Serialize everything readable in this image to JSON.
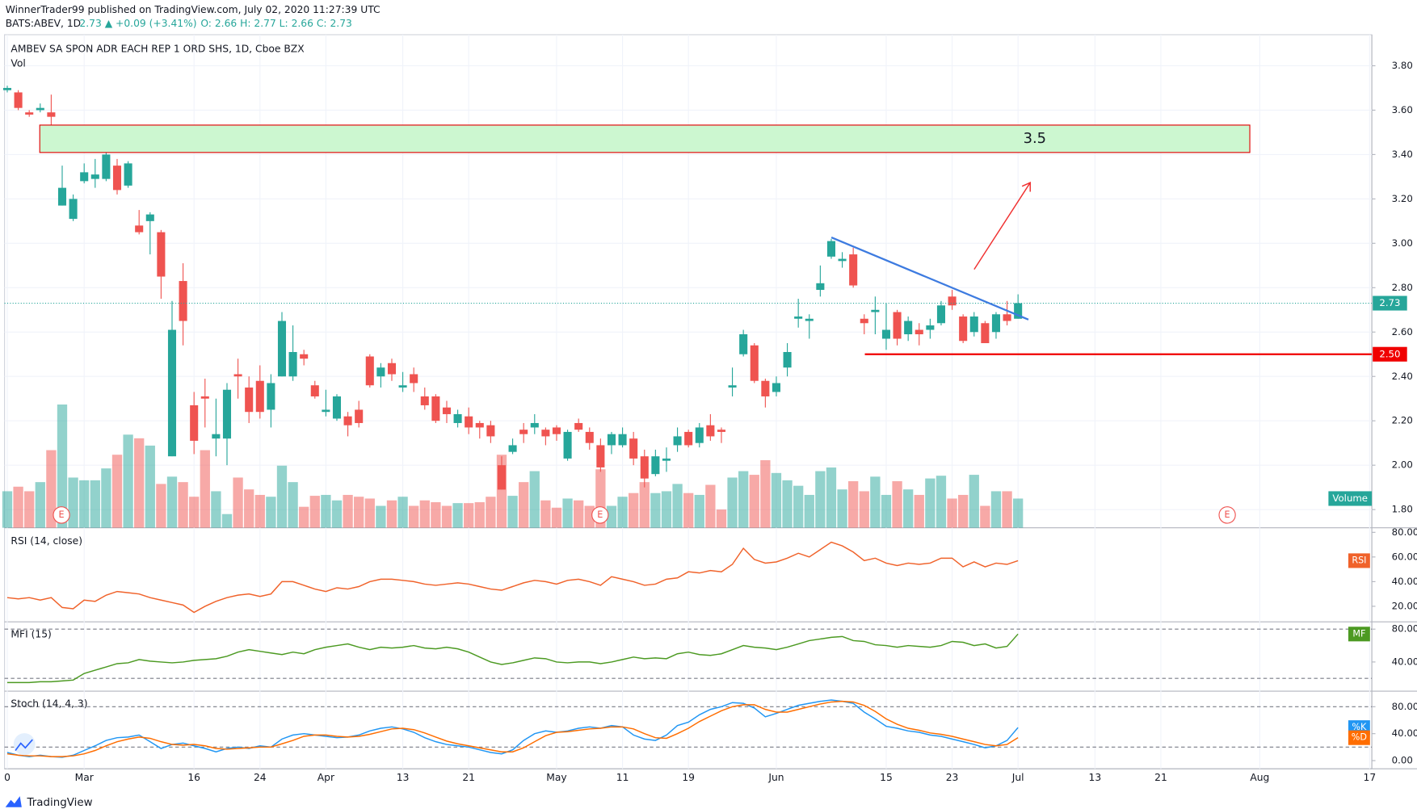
{
  "header": {
    "publisher": "WinnerTrader99 published on TradingView.com, July 02, 2020 11:27:39 UTC",
    "symbol": "BATS:ABEV, 1D",
    "quote": "2.73 ▲ +0.09 (+3.41%)",
    "ohlc": "O: 2.66 H: 2.77 L: 2.66 C: 2.73"
  },
  "footer": "TradingView",
  "chart_data": [
    {
      "type": "candlestick",
      "title": "AMBEV SA SPON ADR EACH REP 1 ORD SHS, 1D, Cboe BZX",
      "volume_label": "Vol",
      "annotation": "3.5",
      "earnings_markers": [
        "E",
        "E",
        "E"
      ],
      "xlim": [
        -0.25,
        124.2
      ],
      "xticks": [
        {
          "value": 0,
          "label": "0"
        },
        {
          "value": 7,
          "label": "Mar"
        },
        {
          "value": 17,
          "label": "16"
        },
        {
          "value": 23,
          "label": "24"
        },
        {
          "value": 29,
          "label": "Apr"
        },
        {
          "value": 36,
          "label": "13"
        },
        {
          "value": 42,
          "label": "21"
        },
        {
          "value": 50,
          "label": "May"
        },
        {
          "value": 56,
          "label": "11"
        },
        {
          "value": 62,
          "label": "19"
        },
        {
          "value": 70,
          "label": "Jun"
        },
        {
          "value": 80,
          "label": "15"
        },
        {
          "value": 86,
          "label": "23"
        },
        {
          "value": 92,
          "label": "Jul"
        },
        {
          "value": 99,
          "label": "13"
        },
        {
          "value": 105,
          "label": "21"
        },
        {
          "value": 114,
          "label": "Aug"
        },
        {
          "value": 124,
          "label": "17"
        }
      ],
      "ylim": [
        1.718,
        3.94
      ],
      "yticks": [
        {
          "value": 3.8,
          "label": "3.80"
        },
        {
          "value": 3.6,
          "label": "3.60"
        },
        {
          "value": 3.4,
          "label": "3.40"
        },
        {
          "value": 3.2,
          "label": "3.20"
        },
        {
          "value": 3.0,
          "label": "3.00"
        },
        {
          "value": 2.8,
          "label": "2.80"
        },
        {
          "value": 2.6,
          "label": "2.60"
        },
        {
          "value": 2.4,
          "label": "2.40"
        },
        {
          "value": 2.2,
          "label": "2.20"
        },
        {
          "value": 2.0,
          "label": "2.00"
        },
        {
          "value": 1.8,
          "label": "1.80"
        }
      ],
      "grid": true,
      "up_color": "#26a69a",
      "down_color": "#ef5350",
      "last_price": {
        "value": 2.73,
        "label": "2.73"
      },
      "support": {
        "value": 2.5,
        "label": "2.50",
        "color": "#f00000"
      },
      "open": [
        3.69,
        3.68,
        3.59,
        3.6,
        3.59,
        3.17,
        3.11,
        3.28,
        3.29,
        3.29,
        3.35,
        3.26,
        3.08,
        3.1,
        3.05,
        2.04,
        2.83,
        2.27,
        2.31,
        2.12,
        2.12,
        2.41,
        2.35,
        2.38,
        2.25,
        2.4,
        2.4,
        2.5,
        2.36,
        2.24,
        2.21,
        2.22,
        2.25,
        2.49,
        2.4,
        2.46,
        2.35,
        2.41,
        2.31,
        2.31,
        2.26,
        2.19,
        2.22,
        2.19,
        2.18,
        2.0,
        2.06,
        2.16,
        2.17,
        2.16,
        2.17,
        2.03,
        2.19,
        2.15,
        2.09,
        2.09,
        2.09,
        2.12,
        2.04,
        1.96,
        2.02,
        2.09,
        2.15,
        2.1,
        2.18,
        2.16,
        2.35,
        2.5,
        2.54,
        2.38,
        2.33,
        2.44,
        2.66,
        2.65,
        2.79,
        2.94,
        2.92,
        2.95,
        2.66,
        2.69,
        2.57,
        2.69,
        2.59,
        2.61,
        2.61,
        2.64,
        2.76,
        2.67,
        2.6,
        2.64,
        2.6,
        2.68,
        2.66
      ],
      "high": [
        3.71,
        3.69,
        3.6,
        3.63,
        3.67,
        3.35,
        3.22,
        3.36,
        3.38,
        3.41,
        3.38,
        3.37,
        3.15,
        3.14,
        3.06,
        2.74,
        2.91,
        2.33,
        2.39,
        2.3,
        2.37,
        2.48,
        2.4,
        2.45,
        2.41,
        2.69,
        2.63,
        2.52,
        2.38,
        2.34,
        2.32,
        2.24,
        2.29,
        2.5,
        2.46,
        2.48,
        2.42,
        2.44,
        2.35,
        2.32,
        2.29,
        2.25,
        2.26,
        2.2,
        2.2,
        2.04,
        2.12,
        2.19,
        2.23,
        2.17,
        2.18,
        2.16,
        2.21,
        2.17,
        2.12,
        2.15,
        2.17,
        2.15,
        2.07,
        2.07,
        2.08,
        2.17,
        2.16,
        2.19,
        2.23,
        2.17,
        2.44,
        2.61,
        2.55,
        2.39,
        2.4,
        2.55,
        2.75,
        2.68,
        2.9,
        3.02,
        2.96,
        2.98,
        2.68,
        2.76,
        2.73,
        2.7,
        2.67,
        2.64,
        2.66,
        2.74,
        2.79,
        2.68,
        2.69,
        2.65,
        2.69,
        2.74,
        2.77
      ],
      "low": [
        3.68,
        3.6,
        3.57,
        3.59,
        3.5,
        3.17,
        3.1,
        3.27,
        3.25,
        3.28,
        3.22,
        3.25,
        3.04,
        2.95,
        2.75,
        2.04,
        2.54,
        2.05,
        2.17,
        2.04,
        2.0,
        2.3,
        2.19,
        2.21,
        2.17,
        2.4,
        2.38,
        2.45,
        2.3,
        2.22,
        2.2,
        2.13,
        2.17,
        2.35,
        2.35,
        2.38,
        2.33,
        2.33,
        2.25,
        2.19,
        2.19,
        2.17,
        2.14,
        2.12,
        2.1,
        1.89,
        2.05,
        2.1,
        2.14,
        2.09,
        2.11,
        2.02,
        2.15,
        2.07,
        1.97,
        2.05,
        2.08,
        2.0,
        1.9,
        1.95,
        1.97,
        2.06,
        2.08,
        2.08,
        2.11,
        2.1,
        2.31,
        2.49,
        2.37,
        2.26,
        2.31,
        2.4,
        2.62,
        2.57,
        2.76,
        2.93,
        2.89,
        2.8,
        2.59,
        2.59,
        2.52,
        2.54,
        2.56,
        2.54,
        2.57,
        2.63,
        2.7,
        2.55,
        2.58,
        2.55,
        2.57,
        2.63,
        2.66
      ],
      "close": [
        3.7,
        3.61,
        3.58,
        3.61,
        3.57,
        3.25,
        3.2,
        3.32,
        3.31,
        3.4,
        3.24,
        3.36,
        3.05,
        3.13,
        2.85,
        2.61,
        2.65,
        2.11,
        2.3,
        2.14,
        2.34,
        2.4,
        2.24,
        2.24,
        2.37,
        2.65,
        2.51,
        2.48,
        2.31,
        2.25,
        2.31,
        2.18,
        2.19,
        2.36,
        2.44,
        2.41,
        2.36,
        2.37,
        2.27,
        2.2,
        2.23,
        2.23,
        2.17,
        2.17,
        2.13,
        1.89,
        2.09,
        2.14,
        2.19,
        2.13,
        2.14,
        2.15,
        2.16,
        2.1,
        1.99,
        2.14,
        2.14,
        2.03,
        1.94,
        2.04,
        2.03,
        2.13,
        2.09,
        2.17,
        2.13,
        2.15,
        2.36,
        2.59,
        2.38,
        2.31,
        2.37,
        2.51,
        2.67,
        2.66,
        2.82,
        3.01,
        2.93,
        2.81,
        2.64,
        2.7,
        2.61,
        2.57,
        2.65,
        2.59,
        2.63,
        2.72,
        2.72,
        2.56,
        2.67,
        2.55,
        2.68,
        2.65,
        2.73
      ],
      "volume": {
        "name": "Volume",
        "values": [
          40,
          45,
          40,
          50,
          85,
          135,
          55,
          52,
          52,
          65,
          80,
          102,
          98,
          90,
          48,
          56,
          50,
          34,
          85,
          40,
          15,
          55,
          42,
          36,
          34,
          68,
          50,
          23,
          35,
          36,
          30,
          36,
          34,
          32,
          24,
          30,
          34,
          24,
          30,
          28,
          24,
          27,
          27,
          28,
          34,
          80,
          35,
          50,
          62,
          30,
          22,
          32,
          30,
          24,
          64,
          24,
          34,
          38,
          50,
          38,
          40,
          48,
          38,
          36,
          47,
          20,
          55,
          62,
          58,
          74,
          60,
          52,
          46,
          36,
          62,
          66,
          42,
          51,
          40,
          56,
          36,
          51,
          42,
          36,
          54,
          57,
          32,
          36,
          58,
          24,
          40,
          40,
          32
        ]
      }
    },
    {
      "type": "line",
      "title": "RSI (14, close)",
      "ylim": [
        7.4,
        83.7
      ],
      "yticks": [
        {
          "value": 80,
          "label": "80.00"
        },
        {
          "value": 60,
          "label": "60.00"
        },
        {
          "value": 40,
          "label": "40.00"
        },
        {
          "value": 20,
          "label": "20.00"
        }
      ],
      "series": [
        {
          "name": "RSI",
          "color": "#f0622a",
          "values": [
            27,
            26,
            27,
            25,
            27,
            19,
            18,
            25,
            24,
            29,
            32,
            31,
            30,
            27,
            25,
            23,
            21,
            15,
            20,
            24,
            27,
            29,
            30,
            28,
            30,
            40,
            40,
            37,
            34,
            32,
            35,
            34,
            36,
            40,
            42,
            42,
            41,
            40,
            38,
            37,
            38,
            39,
            38,
            36,
            34,
            33,
            36,
            39,
            41,
            40,
            38,
            41,
            42,
            40,
            37,
            44,
            42,
            40,
            37,
            38,
            42,
            43,
            48,
            47,
            49,
            48,
            54,
            67,
            58,
            55,
            56,
            59,
            63,
            60,
            66,
            72,
            69,
            64,
            57,
            59,
            55,
            53,
            55,
            54,
            55,
            59,
            59,
            52,
            56,
            52,
            55,
            54,
            57
          ]
        }
      ]
    },
    {
      "type": "line",
      "title": "MFI (15)",
      "ylim": [
        4.4,
        88.9
      ],
      "yticks": [
        {
          "value": 80,
          "label": "80.00"
        },
        {
          "value": 40,
          "label": "40.00"
        }
      ],
      "bands": [
        80,
        20
      ],
      "series": [
        {
          "name": "MF",
          "color": "#4c9a22",
          "values": [
            15,
            15,
            15,
            16,
            16,
            17,
            18,
            26,
            30,
            34,
            38,
            39,
            43,
            41,
            40,
            39,
            40,
            42,
            43,
            44,
            47,
            52,
            55,
            53,
            51,
            49,
            52,
            50,
            55,
            58,
            60,
            62,
            58,
            55,
            58,
            57,
            58,
            60,
            57,
            56,
            58,
            56,
            52,
            46,
            40,
            37,
            39,
            42,
            45,
            44,
            40,
            39,
            40,
            40,
            38,
            40,
            43,
            46,
            44,
            45,
            44,
            50,
            52,
            49,
            48,
            50,
            55,
            60,
            58,
            57,
            55,
            58,
            62,
            66,
            68,
            70,
            71,
            66,
            65,
            61,
            60,
            58,
            60,
            59,
            58,
            60,
            65,
            64,
            60,
            62,
            57,
            59,
            74
          ]
        }
      ]
    },
    {
      "type": "line",
      "title": "Stoch (14, 4, 3)",
      "ylim": [
        -12.2,
        103
      ],
      "yticks": [
        {
          "value": 80,
          "label": "80.00"
        },
        {
          "value": 40,
          "label": "40.00"
        },
        {
          "value": 0,
          "label": "0.00"
        }
      ],
      "bands": [
        80,
        20
      ],
      "series": [
        {
          "name": "%K",
          "color": "#2196f3",
          "values": [
            12,
            8,
            6,
            8,
            6,
            5,
            8,
            15,
            22,
            30,
            34,
            35,
            38,
            28,
            18,
            24,
            26,
            22,
            18,
            13,
            18,
            20,
            18,
            22,
            20,
            32,
            38,
            40,
            38,
            36,
            34,
            35,
            38,
            44,
            48,
            50,
            47,
            42,
            34,
            28,
            24,
            22,
            20,
            16,
            12,
            10,
            16,
            30,
            40,
            44,
            42,
            44,
            48,
            50,
            48,
            52,
            50,
            38,
            32,
            30,
            38,
            52,
            57,
            68,
            76,
            80,
            86,
            85,
            78,
            65,
            70,
            76,
            82,
            85,
            88,
            90,
            88,
            85,
            72,
            62,
            51,
            48,
            44,
            42,
            38,
            36,
            32,
            28,
            24,
            19,
            22,
            30,
            49
          ]
        },
        {
          "name": "%D",
          "color": "#ff6d00",
          "values": [
            10,
            8,
            7,
            7,
            6,
            6,
            7,
            10,
            15,
            22,
            28,
            32,
            35,
            33,
            28,
            24,
            23,
            24,
            22,
            18,
            17,
            18,
            19,
            20,
            20,
            25,
            30,
            36,
            38,
            38,
            36,
            35,
            36,
            39,
            43,
            47,
            48,
            46,
            41,
            35,
            29,
            25,
            22,
            19,
            16,
            13,
            13,
            19,
            28,
            37,
            42,
            43,
            45,
            47,
            48,
            50,
            50,
            47,
            40,
            34,
            33,
            40,
            48,
            58,
            66,
            74,
            80,
            83,
            83,
            76,
            72,
            72,
            76,
            80,
            84,
            87,
            88,
            87,
            82,
            73,
            62,
            54,
            48,
            45,
            41,
            39,
            36,
            32,
            28,
            24,
            22,
            24,
            34
          ]
        }
      ]
    }
  ]
}
